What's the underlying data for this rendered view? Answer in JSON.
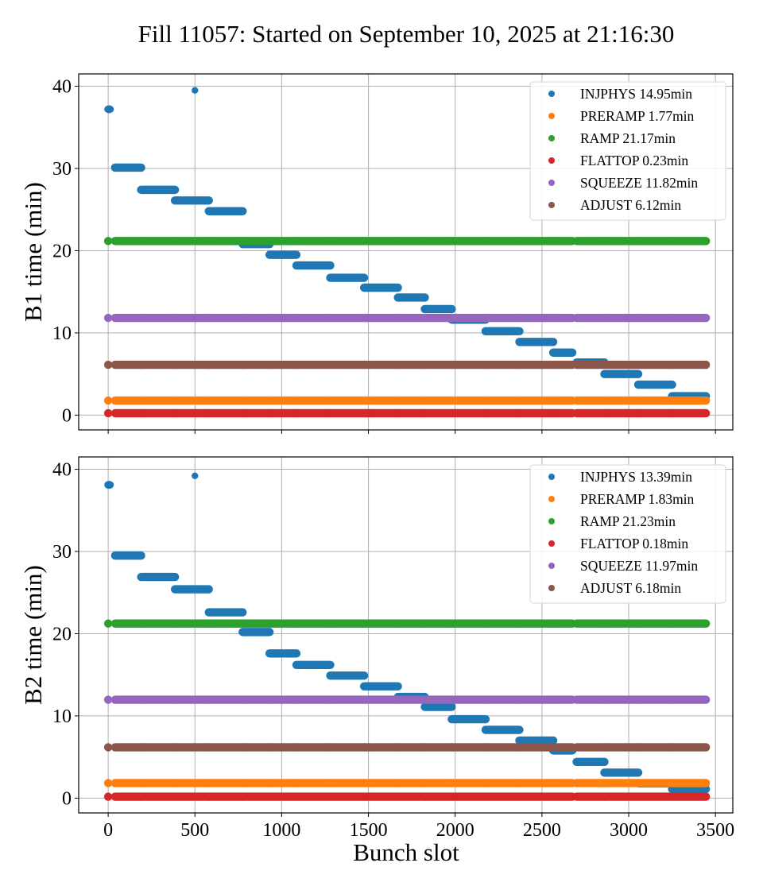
{
  "chart_data": {
    "type": "scatter",
    "title": "Fill 11057: Started on September 10, 2025 at 21:16:30",
    "xlabel": "Bunch slot",
    "xlim": [
      -170,
      3600
    ],
    "xticks": [
      0,
      500,
      1000,
      1500,
      2000,
      2500,
      3000,
      3500
    ],
    "grid": true,
    "trains": [
      [
        0,
        0
      ],
      [
        40,
        190
      ],
      [
        190,
        385
      ],
      [
        385,
        580
      ],
      [
        580,
        775
      ],
      [
        775,
        930
      ],
      [
        930,
        1085
      ],
      [
        1085,
        1280
      ],
      [
        1280,
        1475
      ],
      [
        1475,
        1670
      ],
      [
        1670,
        1825
      ],
      [
        1825,
        1980
      ],
      [
        1980,
        2175
      ],
      [
        2175,
        2370
      ],
      [
        2370,
        2565
      ],
      [
        2565,
        2675
      ],
      [
        2700,
        2860
      ],
      [
        2860,
        3055
      ],
      [
        3055,
        3250
      ],
      [
        3250,
        3445
      ]
    ],
    "panels": [
      {
        "ylabel": "B1 time (min)",
        "ylim": [
          -1.8,
          41.5
        ],
        "yticks": [
          0,
          10,
          20,
          30,
          40
        ],
        "legend_position": "top-right",
        "series": [
          {
            "name": "INJPHYS",
            "duration": "14.95min",
            "color": "#1f77b4",
            "kind": "steps",
            "points": [
              {
                "x": 5,
                "y": 37.2
              },
              {
                "x": 500,
                "y": 39.5
              }
            ],
            "train_values": [
              37.2,
              30.1,
              27.4,
              26.1,
              24.8,
              20.8,
              19.5,
              18.2,
              16.7,
              15.5,
              14.3,
              12.9,
              11.6,
              10.2,
              8.9,
              7.6,
              6.4,
              5.0,
              3.7,
              2.3
            ]
          },
          {
            "name": "PRERAMP",
            "duration": "1.77min",
            "color": "#ff7f0e",
            "kind": "constant",
            "value": 1.77
          },
          {
            "name": "RAMP",
            "duration": "21.17min",
            "color": "#2ca02c",
            "kind": "constant",
            "value": 21.17
          },
          {
            "name": "FLATTOP",
            "duration": "0.23min",
            "color": "#d62728",
            "kind": "constant",
            "value": 0.23
          },
          {
            "name": "SQUEEZE",
            "duration": "11.82min",
            "color": "#9467bd",
            "kind": "constant",
            "value": 11.82
          },
          {
            "name": "ADJUST",
            "duration": "6.12min",
            "color": "#8c564b",
            "kind": "constant",
            "value": 6.12
          }
        ]
      },
      {
        "ylabel": "B2 time (min)",
        "ylim": [
          -1.8,
          41.5
        ],
        "yticks": [
          0,
          10,
          20,
          30,
          40
        ],
        "legend_position": "top-right",
        "series": [
          {
            "name": "INJPHYS",
            "duration": "13.39min",
            "color": "#1f77b4",
            "kind": "steps",
            "points": [
              {
                "x": 5,
                "y": 38.1
              },
              {
                "x": 500,
                "y": 39.2
              }
            ],
            "train_values": [
              38.1,
              29.5,
              26.9,
              25.4,
              22.6,
              20.2,
              17.6,
              16.2,
              14.9,
              13.6,
              12.3,
              11.1,
              9.6,
              8.3,
              7.0,
              5.8,
              4.4,
              3.1,
              1.8,
              1.1
            ]
          },
          {
            "name": "PRERAMP",
            "duration": "1.83min",
            "color": "#ff7f0e",
            "kind": "constant",
            "value": 1.83
          },
          {
            "name": "RAMP",
            "duration": "21.23min",
            "color": "#2ca02c",
            "kind": "constant",
            "value": 21.23
          },
          {
            "name": "FLATTOP",
            "duration": "0.18min",
            "color": "#d62728",
            "kind": "constant",
            "value": 0.18
          },
          {
            "name": "SQUEEZE",
            "duration": "11.97min",
            "color": "#9467bd",
            "kind": "constant",
            "value": 11.97
          },
          {
            "name": "ADJUST",
            "duration": "6.18min",
            "color": "#8c564b",
            "kind": "constant",
            "value": 6.18
          }
        ]
      }
    ]
  }
}
